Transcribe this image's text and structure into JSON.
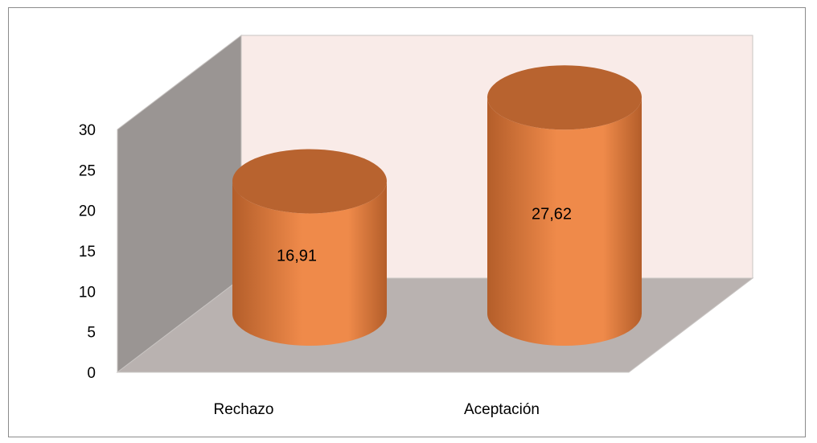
{
  "chart_data": {
    "type": "bar",
    "shape": "cylinder-3d",
    "categories": [
      "Rechazo",
      "Aceptación"
    ],
    "values": [
      16.91,
      27.62
    ],
    "data_labels": [
      "16,91",
      "27,62"
    ],
    "title": "",
    "xlabel": "",
    "ylabel": "",
    "ylim": [
      0,
      30
    ],
    "yticks": [
      "0",
      "5",
      "10",
      "15",
      "20",
      "25",
      "30"
    ],
    "grid": false,
    "legend": "none",
    "colors": {
      "bar": "#ef8a4a",
      "bar_dark": "#b45e2a",
      "bar_top": "#b8632f",
      "back_wall": "#f9ebe8",
      "side_wall": "#9a9593",
      "floor": "#b9b2b0",
      "edge": "#c8c4c2"
    }
  }
}
